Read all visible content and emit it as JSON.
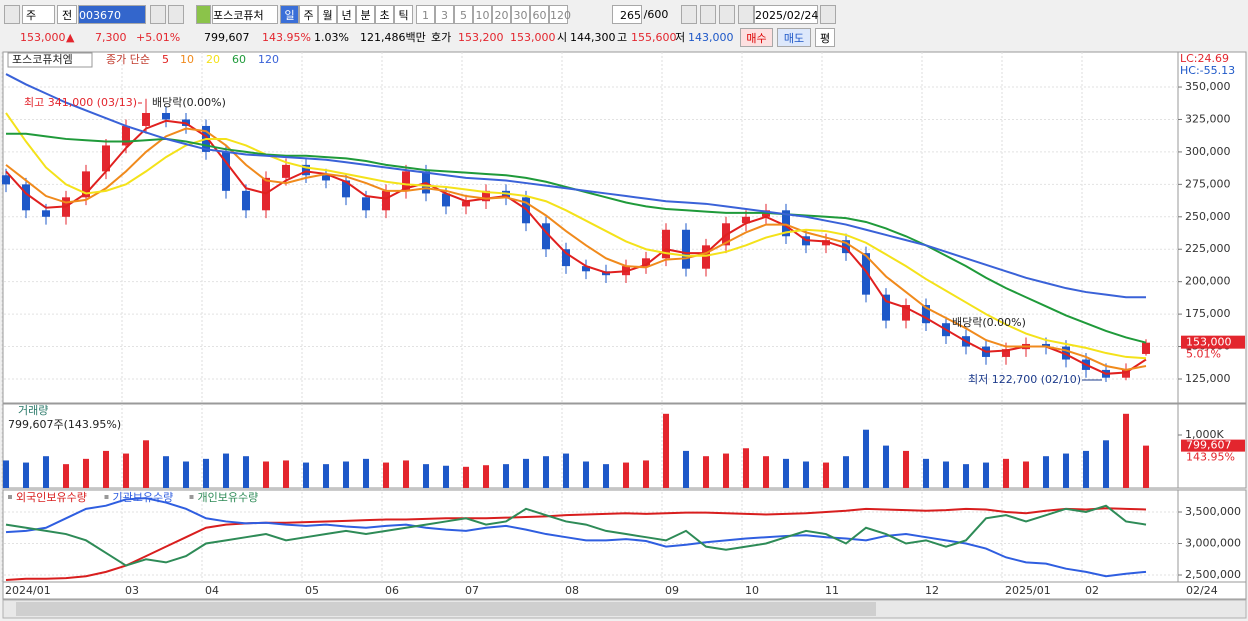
{
  "toolbar": {
    "period": "주",
    "mode": "전",
    "code": "003670",
    "name": "포스코퓨처",
    "units": [
      "일",
      "주",
      "월",
      "년",
      "분",
      "초",
      "틱"
    ],
    "intervals": [
      "1",
      "3",
      "5",
      "10",
      "20",
      "30",
      "60",
      "120"
    ],
    "count": "265",
    "max_count": "/600",
    "date": "2025/02/24"
  },
  "quote": {
    "price": "153,000",
    "arrow": "▲",
    "change": "7,300",
    "change_pct": "+5.01%",
    "volume": "799,607",
    "volume_ratio": "143.95%",
    "turnover": "1.03%",
    "amount": "121,486백만",
    "ask_label": "호가",
    "ask": "153,200",
    "bid": "153,000",
    "open_label": "시",
    "open": "144,300",
    "high_label": "고",
    "high": "155,600",
    "low_label": "저",
    "low": "143,000",
    "buttons": [
      "매수",
      "매도",
      "평"
    ]
  },
  "chart_data": [
    {
      "type": "candlestick",
      "title": "포스코퓨처엠",
      "ma_label": "종가 단순",
      "up_color": "#e3262e",
      "down_color": "#1e58c8",
      "categories": [
        "2024/01",
        null,
        null,
        null,
        null,
        null,
        "03",
        null,
        null,
        null,
        "04",
        null,
        null,
        null,
        null,
        "05",
        null,
        null,
        null,
        "06",
        null,
        null,
        null,
        "07",
        null,
        null,
        null,
        null,
        "08",
        null,
        null,
        null,
        null,
        "09",
        null,
        null,
        null,
        "10",
        null,
        null,
        null,
        "11",
        null,
        null,
        null,
        null,
        "12",
        null,
        null,
        null,
        "2025/01",
        null,
        null,
        null,
        "02",
        null,
        null,
        null
      ],
      "current_date": "02/24",
      "open": [
        282000,
        275000,
        255000,
        250000,
        265000,
        285000,
        305000,
        320000,
        330000,
        325000,
        320000,
        300000,
        270000,
        255000,
        280000,
        290000,
        282000,
        278000,
        265000,
        255000,
        270000,
        285000,
        268000,
        258000,
        262000,
        270000,
        265000,
        245000,
        225000,
        212000,
        208000,
        205000,
        212000,
        218000,
        240000,
        210000,
        228000,
        245000,
        250000,
        255000,
        235000,
        228000,
        232000,
        222000,
        190000,
        170000,
        182000,
        168000,
        158000,
        150000,
        142000,
        148000,
        152000,
        150000,
        140000,
        132000,
        126000,
        144300
      ],
      "high": [
        287000,
        280000,
        260000,
        270000,
        290000,
        310000,
        325000,
        341000,
        335000,
        330000,
        325000,
        305000,
        275000,
        285000,
        295000,
        295000,
        287000,
        283000,
        270000,
        275000,
        290000,
        290000,
        273000,
        267000,
        275000,
        275000,
        270000,
        250000,
        230000,
        217000,
        213000,
        217000,
        223000,
        245000,
        245000,
        233000,
        250000,
        255000,
        260000,
        260000,
        240000,
        237000,
        237000,
        227000,
        195000,
        187000,
        187000,
        173000,
        163000,
        155000,
        153000,
        157000,
        157000,
        155000,
        145000,
        137000,
        137000,
        155600
      ],
      "low": [
        269000,
        249000,
        244000,
        244000,
        259000,
        279000,
        299000,
        314000,
        319000,
        314000,
        294000,
        264000,
        249000,
        249000,
        274000,
        276000,
        272000,
        259000,
        249000,
        249000,
        264000,
        262000,
        252000,
        252000,
        256000,
        259000,
        239000,
        219000,
        206000,
        202000,
        199000,
        199000,
        206000,
        212000,
        204000,
        204000,
        222000,
        239000,
        244000,
        229000,
        222000,
        222000,
        216000,
        184000,
        164000,
        164000,
        162000,
        152000,
        144000,
        136000,
        136000,
        142000,
        144000,
        134000,
        126000,
        122700,
        124000,
        143000
      ],
      "close": [
        275000,
        255000,
        250000,
        265000,
        285000,
        305000,
        320000,
        330000,
        325000,
        320000,
        300000,
        270000,
        255000,
        280000,
        290000,
        282000,
        278000,
        265000,
        255000,
        270000,
        285000,
        268000,
        258000,
        262000,
        270000,
        265000,
        245000,
        225000,
        212000,
        208000,
        205000,
        212000,
        218000,
        240000,
        210000,
        228000,
        245000,
        250000,
        255000,
        235000,
        228000,
        232000,
        222000,
        190000,
        170000,
        182000,
        168000,
        158000,
        150000,
        142000,
        148000,
        152000,
        150000,
        140000,
        132000,
        126000,
        132000,
        153000
      ],
      "series": [
        {
          "name": "5",
          "color": "#e0201f",
          "values": [
            285000,
            268000,
            257000,
            258000,
            268000,
            285000,
            303000,
            318000,
            324000,
            322000,
            312000,
            292000,
            272000,
            268000,
            278000,
            285000,
            283000,
            277000,
            266000,
            264000,
            272000,
            276000,
            268000,
            262000,
            264000,
            266000,
            256000,
            238000,
            222000,
            212000,
            207000,
            208000,
            213000,
            225000,
            222000,
            222000,
            236000,
            245000,
            250000,
            243000,
            232000,
            231000,
            226000,
            208000,
            185000,
            180000,
            172000,
            163000,
            154000,
            146000,
            147000,
            150000,
            150000,
            144000,
            136000,
            129000,
            130000,
            140000
          ]
        },
        {
          "name": "10",
          "color": "#f08a1c",
          "values": [
            290000,
            278000,
            266000,
            261000,
            263000,
            272000,
            285000,
            300000,
            312000,
            318000,
            316000,
            305000,
            290000,
            278000,
            276000,
            280000,
            283000,
            281000,
            276000,
            270000,
            270000,
            272000,
            270000,
            266000,
            264000,
            265000,
            261000,
            251000,
            239000,
            228000,
            218000,
            212000,
            211000,
            217000,
            218000,
            222000,
            230000,
            238000,
            244000,
            244000,
            238000,
            234000,
            230000,
            220000,
            204000,
            192000,
            180000,
            172000,
            164000,
            155000,
            150000,
            150000,
            150000,
            147000,
            142000,
            135000,
            132000,
            135000
          ]
        },
        {
          "name": "20",
          "color": "#f4e21a",
          "values": [
            330000,
            308000,
            288000,
            275000,
            268000,
            270000,
            275000,
            285000,
            296000,
            305000,
            310000,
            310000,
            305000,
            298000,
            292000,
            288000,
            286000,
            283000,
            280000,
            277000,
            275000,
            274000,
            273000,
            271000,
            269000,
            268000,
            266000,
            262000,
            255000,
            247000,
            239000,
            231000,
            225000,
            222000,
            220000,
            220000,
            223000,
            228000,
            234000,
            238000,
            240000,
            239000,
            236000,
            230000,
            221000,
            212000,
            202000,
            193000,
            184000,
            175000,
            167000,
            160000,
            155000,
            152000,
            149000,
            145000,
            142000,
            141000
          ]
        },
        {
          "name": "60",
          "color": "#1f9a3a",
          "values": [
            314000,
            314000,
            312000,
            310000,
            309000,
            308000,
            308000,
            309000,
            310000,
            308000,
            305000,
            302000,
            300000,
            298000,
            297000,
            297000,
            296000,
            295000,
            293000,
            290000,
            288000,
            286000,
            285000,
            284000,
            283000,
            282000,
            280000,
            277000,
            273000,
            269000,
            265000,
            261000,
            258000,
            256000,
            255000,
            254000,
            253000,
            253000,
            253000,
            252000,
            251000,
            250000,
            249000,
            246000,
            241000,
            235000,
            228000,
            220000,
            212000,
            203000,
            195000,
            188000,
            181000,
            174000,
            168000,
            162000,
            157000,
            153000
          ]
        },
        {
          "name": "120",
          "color": "#3a62d8",
          "values": [
            360000,
            352000,
            345000,
            338000,
            332000,
            326000,
            320000,
            315000,
            310000,
            306000,
            302000,
            300000,
            298000,
            297000,
            296000,
            295000,
            294000,
            292000,
            290000,
            288000,
            286000,
            284000,
            282000,
            280000,
            279000,
            278000,
            276000,
            274000,
            272000,
            270000,
            268000,
            266000,
            264000,
            262000,
            261000,
            260000,
            258000,
            256000,
            254000,
            252000,
            250000,
            247000,
            244000,
            240000,
            236000,
            232000,
            228000,
            223000,
            218000,
            213000,
            208000,
            203000,
            199000,
            195000,
            192000,
            190000,
            188000,
            188000
          ]
        }
      ],
      "ylim": [
        106500,
        377000
      ],
      "yticks": [
        {
          "value": 125000,
          "label": "125,000"
        },
        {
          "value": 150000,
          "label": "150,000"
        },
        {
          "value": 175000,
          "label": "175,000"
        },
        {
          "value": 200000,
          "label": "200,000"
        },
        {
          "value": 225000,
          "label": "225,000"
        },
        {
          "value": 250000,
          "label": "250,000"
        },
        {
          "value": 275000,
          "label": "275,000"
        },
        {
          "value": 300000,
          "label": "300,000"
        },
        {
          "value": 325000,
          "label": "325,000"
        },
        {
          "value": 350000,
          "label": "350,000"
        }
      ],
      "grid": true,
      "annotations": [
        "최고 341,000 (03/13)",
        "배당락(0.00%)",
        "배당락(0.00%)",
        "최저 122,700 (02/10)"
      ],
      "lc_label": "LC:24.69",
      "hc_label": "HC:-55.13",
      "last_label": "153,000",
      "last_change": "5.01%"
    },
    {
      "type": "bar",
      "title": "거래량",
      "subtitle": "799,607주(143.95%)",
      "values": [
        520000,
        480000,
        600000,
        450000,
        550000,
        700000,
        650000,
        900000,
        600000,
        500000,
        550000,
        650000,
        600000,
        500000,
        520000,
        480000,
        450000,
        500000,
        550000,
        480000,
        520000,
        450000,
        420000,
        400000,
        430000,
        450000,
        550000,
        600000,
        650000,
        500000,
        450000,
        480000,
        520000,
        1400000,
        700000,
        600000,
        650000,
        750000,
        600000,
        550000,
        500000,
        480000,
        600000,
        1100000,
        800000,
        700000,
        550000,
        500000,
        450000,
        480000,
        550000,
        500000,
        600000,
        650000,
        700000,
        900000,
        1400000,
        799607
      ],
      "ylim": [
        0,
        1585000
      ],
      "yticks": [
        {
          "value": 1000000,
          "label": "1,000K"
        }
      ],
      "last_label": "799,607",
      "last_ratio": "143.95%"
    },
    {
      "type": "line",
      "series": [
        {
          "name": "외국인보유수량",
          "color": "#d81e1e",
          "values": [
            2420000,
            2440000,
            2440000,
            2450000,
            2480000,
            2550000,
            2650000,
            2800000,
            2950000,
            3100000,
            3250000,
            3300000,
            3320000,
            3330000,
            3330000,
            3340000,
            3350000,
            3360000,
            3370000,
            3380000,
            3380000,
            3390000,
            3400000,
            3400000,
            3400000,
            3410000,
            3420000,
            3430000,
            3450000,
            3460000,
            3470000,
            3480000,
            3470000,
            3480000,
            3490000,
            3490000,
            3480000,
            3470000,
            3460000,
            3470000,
            3480000,
            3500000,
            3520000,
            3550000,
            3540000,
            3530000,
            3520000,
            3530000,
            3550000,
            3540000,
            3500000,
            3480000,
            3520000,
            3550000,
            3540000,
            3560000,
            3550000,
            3540000
          ]
        },
        {
          "name": "기관보유수량",
          "color": "#2f5ee0",
          "values": [
            3180000,
            3200000,
            3250000,
            3400000,
            3550000,
            3600000,
            3700000,
            3720000,
            3650000,
            3550000,
            3400000,
            3350000,
            3320000,
            3330000,
            3300000,
            3280000,
            3300000,
            3270000,
            3250000,
            3280000,
            3300000,
            3250000,
            3220000,
            3200000,
            3250000,
            3280000,
            3220000,
            3150000,
            3100000,
            3050000,
            3050000,
            3070000,
            3040000,
            2950000,
            2980000,
            3020000,
            3050000,
            3080000,
            3100000,
            3120000,
            3130000,
            3100000,
            3080000,
            3050000,
            3120000,
            3150000,
            3100000,
            3050000,
            3000000,
            2920000,
            2780000,
            2700000,
            2680000,
            2600000,
            2550000,
            2480000,
            2520000,
            2550000
          ]
        },
        {
          "name": "개인보유수량",
          "color": "#2e8b57",
          "values": [
            3300000,
            3250000,
            3200000,
            3150000,
            3050000,
            2850000,
            2650000,
            2750000,
            2700000,
            2800000,
            3000000,
            3050000,
            3100000,
            3150000,
            3050000,
            3100000,
            3150000,
            3200000,
            3150000,
            3200000,
            3250000,
            3300000,
            3350000,
            3400000,
            3300000,
            3350000,
            3550000,
            3450000,
            3350000,
            3300000,
            3200000,
            3150000,
            3100000,
            3050000,
            3200000,
            2950000,
            2900000,
            2950000,
            3000000,
            3100000,
            3200000,
            3150000,
            3000000,
            3250000,
            3150000,
            3000000,
            3050000,
            2950000,
            3050000,
            3400000,
            3450000,
            3350000,
            3450000,
            3550000,
            3500000,
            3600000,
            3350000,
            3300000
          ]
        }
      ],
      "ylim": [
        2389000,
        3849000
      ],
      "yticks": [
        {
          "value": 2500000,
          "label": "2,500,000"
        },
        {
          "value": 3000000,
          "label": "3,000,000"
        },
        {
          "value": 3500000,
          "label": "3,500,000"
        }
      ],
      "grid": true
    }
  ]
}
